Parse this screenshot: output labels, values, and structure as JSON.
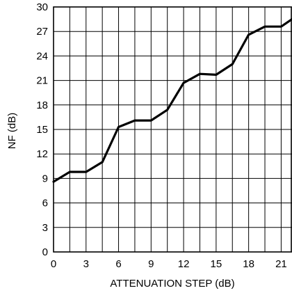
{
  "chart_data": {
    "type": "line",
    "title": "",
    "xlabel": "ATTENUATION STEP (dB)",
    "ylabel": "NF (dB)",
    "xlim": [
      0,
      22
    ],
    "ylim": [
      0,
      30
    ],
    "x_ticks": [
      0,
      3,
      6,
      9,
      12,
      15,
      18,
      21
    ],
    "y_ticks": [
      0,
      3,
      6,
      9,
      12,
      15,
      18,
      21,
      24,
      27,
      30
    ],
    "grid": true,
    "legend": "none",
    "line_color": "#000000",
    "series": [
      {
        "x": [
          0,
          1.5,
          3,
          4.5,
          6,
          7.5,
          9,
          10.5,
          12,
          13.5,
          15,
          16.5,
          18,
          19.5,
          21,
          22
        ],
        "values": [
          8.6,
          9.8,
          9.8,
          11.0,
          15.3,
          16.1,
          16.1,
          17.4,
          20.7,
          21.8,
          21.7,
          23.0,
          26.6,
          27.6,
          27.6,
          28.5
        ]
      }
    ]
  }
}
